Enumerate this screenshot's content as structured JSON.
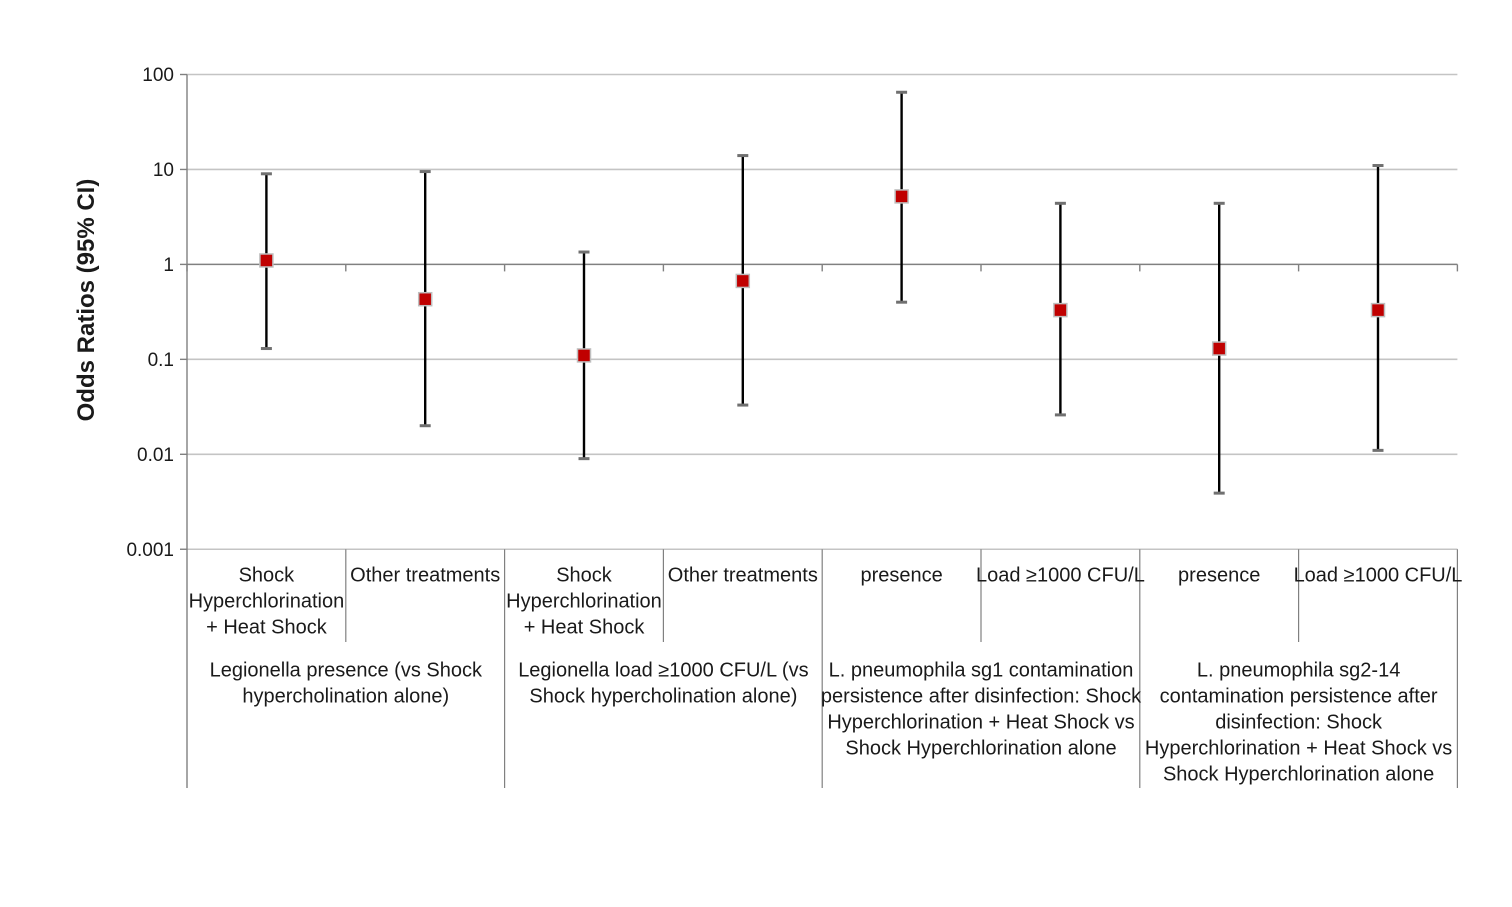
{
  "page": {
    "background": "#ffffff"
  },
  "chart_data": {
    "type": "scatter",
    "subtype": "forest-plot-odds-ratios-with-95ci-error-bars",
    "title": "",
    "xlabel": "",
    "ylabel": "Odds Ratios (95% CI)",
    "y_scale": "log",
    "ylim": [
      0.001,
      100
    ],
    "ytick_values": [
      100,
      10,
      1,
      0.1,
      0.01,
      0.001
    ],
    "ytick_labels": [
      "100",
      "10",
      "1",
      "0.1",
      "0.01",
      "0.001"
    ],
    "grid": "horizontal-decade-gridlines",
    "legend_position": "none",
    "colors": {
      "marker_fill": "#C00000",
      "marker_border": "#BFBFBF",
      "error_bar_line": "#000000",
      "error_bar_cap": "#707070",
      "gridline": "#C4C4C4",
      "axis_line": "#808080",
      "text": "#1a1a1a"
    },
    "groups": [
      {
        "label": "Legionella presence (vs Shock hypercholination alone)",
        "label_lines": [
          "Legionella presence (vs Shock",
          "hypercholination alone)"
        ],
        "points": [
          {
            "category": "Shock Hyperchlorination + Heat Shock",
            "category_lines": [
              "Shock",
              "Hyperchlorination",
              "+ Heat Shock"
            ],
            "odds_ratio": 1.1,
            "ci_low": 0.13,
            "ci_high": 9
          },
          {
            "category": "Other treatments",
            "category_lines": [
              "Other treatments"
            ],
            "odds_ratio": 0.43,
            "ci_low": 0.02,
            "ci_high": 9.5
          }
        ]
      },
      {
        "label": "Legionella load ≥1000 CFU/L (vs Shock hypercholination alone)",
        "label_lines": [
          "Legionella load ≥1000 CFU/L (vs",
          "Shock hypercholination alone)"
        ],
        "points": [
          {
            "category": "Shock Hyperchlorination + Heat Shock",
            "category_lines": [
              "Shock",
              "Hyperchlorination",
              "+ Heat Shock"
            ],
            "odds_ratio": 0.11,
            "ci_low": 0.009,
            "ci_high": 1.35
          },
          {
            "category": "Other treatments",
            "category_lines": [
              "Other treatments"
            ],
            "odds_ratio": 0.67,
            "ci_low": 0.033,
            "ci_high": 14
          }
        ]
      },
      {
        "label": "L. pneumophila sg1 contamination persistence after disinfection: Shock Hyperchlorination + Heat Shock vs Shock Hyperchlorination alone",
        "label_lines": [
          "L. pneumophila sg1 contamination",
          "persistence after disinfection: Shock",
          "Hyperchlorination + Heat Shock vs",
          "Shock Hyperchlorination alone"
        ],
        "points": [
          {
            "category": "presence",
            "category_lines": [
              "presence"
            ],
            "odds_ratio": 5.2,
            "ci_low": 0.4,
            "ci_high": 65
          },
          {
            "category": "Load ≥1000 CFU/L",
            "category_lines": [
              "Load ≥1000 CFU/L"
            ],
            "odds_ratio": 0.33,
            "ci_low": 0.026,
            "ci_high": 4.4
          }
        ]
      },
      {
        "label": "L. pneumophila sg2-14 contamination persistence after disinfection: Shock Hyperchlorination + Heat Shock vs Shock Hyperchlorination alone",
        "label_lines": [
          "L. pneumophila sg2-14",
          "contamination persistence after",
          "disinfection: Shock",
          "Hyperchlorination + Heat Shock vs",
          "Shock Hyperchlorination alone"
        ],
        "points": [
          {
            "category": "presence",
            "category_lines": [
              "presence"
            ],
            "odds_ratio": 0.13,
            "ci_low": 0.0039,
            "ci_high": 4.4
          },
          {
            "category": "Load ≥1000 CFU/L",
            "category_lines": [
              "Load ≥1000 CFU/L"
            ],
            "odds_ratio": 0.33,
            "ci_low": 0.011,
            "ci_high": 11
          }
        ]
      }
    ]
  }
}
